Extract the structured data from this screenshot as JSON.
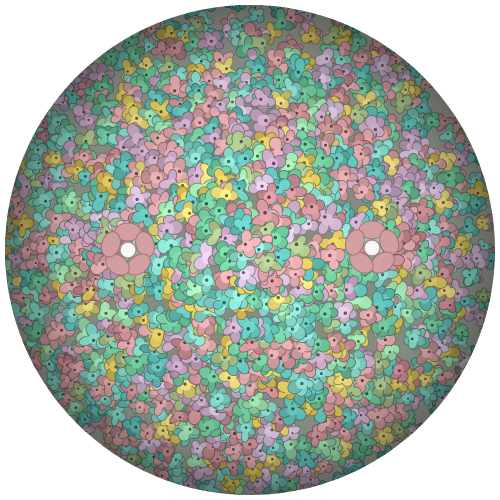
{
  "scene": {
    "background": "#ffffff",
    "subject": "icosahedral-capsid-density-map",
    "palette": {
      "pink": "#d9a3a6",
      "rose": "#c98f95",
      "mauve": "#c7a7c4",
      "lavender": "#d3bdd8",
      "teal": "#62bfb6",
      "aqua": "#86d6c8",
      "sea-green": "#6fc59b",
      "mint": "#9ddfad",
      "sage": "#a7bf8a",
      "yellow": "#e4d57a",
      "gold": "#d8c25d"
    },
    "five_fold_pores": 2,
    "shading": "ambient-occlusion"
  }
}
